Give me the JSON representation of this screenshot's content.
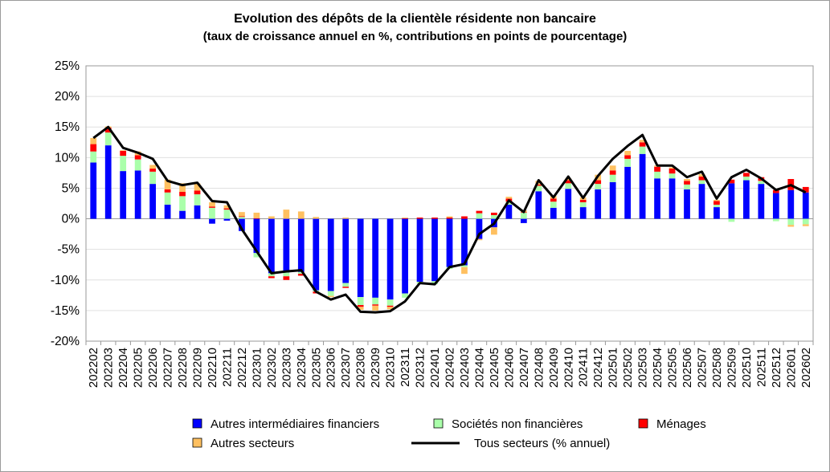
{
  "chart_data": {
    "type": "bar",
    "stacked": true,
    "title": "Evolution des dépôts de la clientèle résidente non bancaire",
    "subtitle": "(taux de croissance annuel en %, contributions en points de pourcentage)",
    "ylim": [
      -20,
      25
    ],
    "yticks": [
      "25%",
      "20%",
      "15%",
      "10%",
      "5%",
      "0%",
      "-5%",
      "-10%",
      "-15%",
      "-20%"
    ],
    "ytick_values": [
      25,
      20,
      15,
      10,
      5,
      0,
      -5,
      -10,
      -15,
      -20
    ],
    "grid": true,
    "legend_position": "bottom",
    "categories": [
      "202202",
      "202203",
      "202204",
      "202205",
      "202206",
      "202207",
      "202208",
      "202209",
      "202210",
      "202211",
      "202212",
      "202301",
      "202302",
      "202303",
      "202304",
      "202305",
      "202306",
      "202307",
      "202308",
      "202309",
      "202310",
      "202311",
      "202312",
      "202401",
      "202402",
      "202403",
      "202404",
      "202405",
      "202406",
      "202407",
      "202408",
      "202409",
      "202410",
      "202411",
      "202412",
      "202501",
      "202502",
      "202503",
      "202504",
      "202505",
      "202506",
      "202507",
      "202508",
      "202509",
      "202510",
      "202511",
      "202512",
      "202601",
      "202602"
    ],
    "series": [
      {
        "name": "Autres intermédiaires financiers",
        "color": "#0000ff",
        "kind": "bar",
        "values": [
          9.2,
          12.0,
          7.8,
          7.9,
          5.7,
          2.3,
          1.3,
          2.2,
          -0.8,
          -0.3,
          -2.0,
          -5.6,
          -8.9,
          -8.8,
          -8.7,
          -11.7,
          -11.8,
          -10.5,
          -12.8,
          -12.9,
          -13.2,
          -12.2,
          -10.3,
          -10.2,
          -7.9,
          -7.6,
          -3.3,
          -1.4,
          2.3,
          -0.7,
          4.5,
          1.8,
          4.9,
          1.9,
          4.8,
          6.0,
          8.5,
          10.6,
          6.6,
          6.6,
          4.8,
          5.7,
          1.9,
          5.8,
          6.3,
          5.7,
          4.2,
          4.7,
          4.3
        ]
      },
      {
        "name": "Sociétés non financières",
        "color": "#aaffaa",
        "kind": "bar",
        "values": [
          1.8,
          2.1,
          2.5,
          1.8,
          2.0,
          2.0,
          2.4,
          1.8,
          1.8,
          1.5,
          0.3,
          -0.7,
          -0.5,
          -0.6,
          -0.3,
          -0.2,
          -0.8,
          -0.6,
          -1.3,
          -1.1,
          -1.0,
          -0.7,
          -0.3,
          -0.5,
          -0.3,
          -0.3,
          0.9,
          0.6,
          0.5,
          1.0,
          0.9,
          1.0,
          0.9,
          0.8,
          0.9,
          1.2,
          1.3,
          1.2,
          1.1,
          0.8,
          0.8,
          0.6,
          0.4,
          -0.5,
          0.6,
          0.5,
          -0.4,
          -1.0,
          -0.9
        ]
      },
      {
        "name": "Ménages",
        "color": "#ff0000",
        "kind": "bar",
        "values": [
          1.2,
          0.8,
          0.8,
          0.7,
          0.5,
          0.5,
          0.7,
          0.6,
          0.2,
          0.2,
          0.1,
          0.1,
          -0.3,
          -0.6,
          -0.3,
          -0.3,
          0.0,
          -0.2,
          -0.3,
          -0.2,
          -0.2,
          0.1,
          0.2,
          0.2,
          0.2,
          0.4,
          0.4,
          0.4,
          0.5,
          0.1,
          0.2,
          0.5,
          0.5,
          0.4,
          0.6,
          0.7,
          0.6,
          0.7,
          0.8,
          0.8,
          0.6,
          0.6,
          0.6,
          0.6,
          0.6,
          0.6,
          0.5,
          1.8,
          0.9
        ]
      },
      {
        "name": "Autres secteurs",
        "color": "#ffc060",
        "kind": "bar",
        "values": [
          1.0,
          0.2,
          0.1,
          0.6,
          0.6,
          1.6,
          1.4,
          1.2,
          0.7,
          0.5,
          0.7,
          0.9,
          0.4,
          1.5,
          1.2,
          0.3,
          -0.2,
          0.2,
          -0.5,
          -0.8,
          -0.4,
          0.1,
          0.0,
          0.0,
          0.2,
          -1.1,
          -0.2,
          -1.2,
          0.3,
          0.3,
          0.6,
          0.4,
          0.3,
          0.4,
          0.9,
          0.8,
          0.7,
          0.4,
          0.2,
          0.2,
          0.3,
          0.4,
          0.2,
          0.0,
          0.0,
          0.0,
          0.0,
          -0.3,
          -0.3
        ]
      },
      {
        "name": "Tous secteurs (% annuel)",
        "color": "#000000",
        "kind": "line",
        "values": [
          13.2,
          15.0,
          11.6,
          10.8,
          9.8,
          6.2,
          5.5,
          5.9,
          2.9,
          2.7,
          -1.7,
          -5.3,
          -8.9,
          -8.6,
          -8.4,
          -11.9,
          -13.2,
          -12.4,
          -15.2,
          -15.3,
          -15.1,
          -13.5,
          -10.5,
          -10.7,
          -7.9,
          -7.4,
          -2.5,
          -0.8,
          3.0,
          1.1,
          6.3,
          3.5,
          6.9,
          3.4,
          7.0,
          9.8,
          11.9,
          13.7,
          8.7,
          8.7,
          6.8,
          7.7,
          3.3,
          6.8,
          8.0,
          6.6,
          4.7,
          5.5,
          4.3
        ]
      }
    ]
  }
}
